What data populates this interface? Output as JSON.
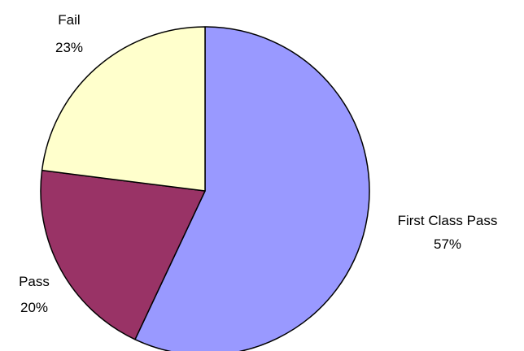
{
  "chart_data": {
    "type": "pie",
    "title": "",
    "slices": [
      {
        "name": "First Class Pass",
        "value": 57,
        "percent_label": "57%",
        "color": "#9999ff"
      },
      {
        "name": "Pass",
        "value": 20,
        "percent_label": "20%",
        "color": "#993366"
      },
      {
        "name": "Fail",
        "value": 23,
        "percent_label": "23%",
        "color": "#ffffcc"
      }
    ],
    "start_angle_deg": 0,
    "direction": "clockwise",
    "slice_border_color": "#000000",
    "legend": "none"
  }
}
